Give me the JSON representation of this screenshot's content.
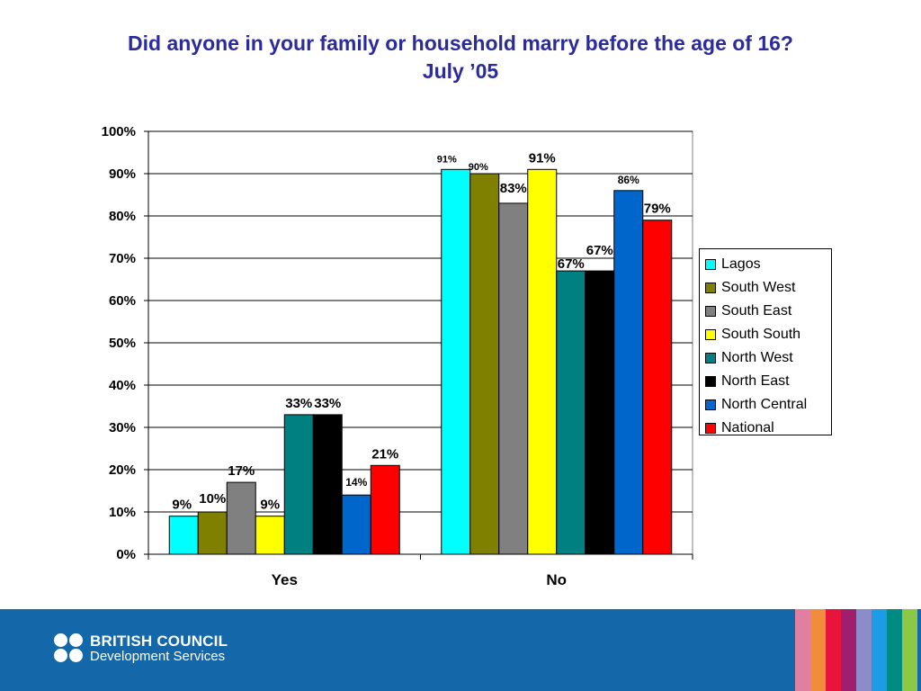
{
  "title_line1": "Did anyone in your family or household marry before the age of 16?",
  "title_line2": "July ’05",
  "chart_data": {
    "type": "bar",
    "categories": [
      "Yes",
      "No"
    ],
    "ylim": [
      0,
      100
    ],
    "yticks": [
      "0%",
      "10%",
      "20%",
      "30%",
      "40%",
      "50%",
      "60%",
      "70%",
      "80%",
      "90%",
      "100%"
    ],
    "grid": true,
    "legend_position": "right",
    "series": [
      {
        "name": "Lagos",
        "color": "#00ffff",
        "values": [
          9,
          91
        ],
        "labels": [
          "9%",
          "91%"
        ]
      },
      {
        "name": "South West",
        "color": "#808000",
        "values": [
          10,
          90
        ],
        "labels": [
          "10%",
          "90%"
        ]
      },
      {
        "name": "South East",
        "color": "#808080",
        "values": [
          17,
          83
        ],
        "labels": [
          "17%",
          "83%"
        ]
      },
      {
        "name": "South South",
        "color": "#ffff00",
        "values": [
          9,
          91
        ],
        "labels": [
          "9%",
          "91%"
        ]
      },
      {
        "name": "North West",
        "color": "#008080",
        "values": [
          33,
          67
        ],
        "labels": [
          "33%",
          "67%"
        ]
      },
      {
        "name": "North East",
        "color": "#000000",
        "values": [
          33,
          67
        ],
        "labels": [
          "33%",
          "67%"
        ]
      },
      {
        "name": "North Central",
        "color": "#0066cc",
        "values": [
          14,
          86
        ],
        "labels": [
          "14%",
          "86%"
        ]
      },
      {
        "name": "National",
        "color": "#ff0000",
        "values": [
          21,
          79
        ],
        "labels": [
          "21%",
          "79%"
        ]
      }
    ]
  },
  "footer": {
    "logo_line1": "BRITISH COUNCIL",
    "logo_line2": "Development Services",
    "stripe_colors": [
      "#e07fa0",
      "#f08c3c",
      "#e8143c",
      "#a01e6e",
      "#8c8cc8",
      "#1e9be6",
      "#008c82",
      "#8cc846"
    ]
  }
}
